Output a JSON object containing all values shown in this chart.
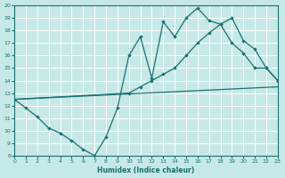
{
  "xlabel": "Humidex (Indice chaleur)",
  "xlim": [
    0,
    23
  ],
  "ylim": [
    8,
    20
  ],
  "xticks": [
    0,
    1,
    2,
    3,
    4,
    5,
    6,
    7,
    8,
    9,
    10,
    11,
    12,
    13,
    14,
    15,
    16,
    17,
    18,
    19,
    20,
    21,
    22,
    23
  ],
  "yticks": [
    8,
    9,
    10,
    11,
    12,
    13,
    14,
    15,
    16,
    17,
    18,
    19,
    20
  ],
  "bg_color": "#c6e8e6",
  "grid_color": "#ffffff",
  "line_color": "#1a7070",
  "curve1_x": [
    0,
    1,
    2,
    3,
    4,
    5,
    6,
    7,
    8,
    9,
    10,
    11,
    12,
    13,
    14,
    15,
    16,
    17,
    18,
    19,
    20,
    21,
    22,
    23
  ],
  "curve1_y": [
    12.5,
    11.8,
    11.1,
    10.2,
    9.8,
    9.2,
    8.5,
    8.0,
    9.5,
    11.8,
    16.0,
    17.5,
    14.2,
    18.7,
    17.5,
    19.0,
    19.8,
    18.8,
    18.5,
    17.0,
    16.2,
    15.0,
    15.0,
    14.0
  ],
  "curve2_x": [
    0,
    10,
    11,
    12,
    13,
    14,
    15,
    16,
    17,
    18,
    19,
    20,
    21,
    22,
    23
  ],
  "curve2_y": [
    12.5,
    13.0,
    13.5,
    14.0,
    14.5,
    15.0,
    16.0,
    17.0,
    17.8,
    18.5,
    19.0,
    17.2,
    16.5,
    15.0,
    14.0
  ],
  "curve3_x": [
    0,
    23
  ],
  "curve3_y": [
    12.5,
    13.5
  ]
}
